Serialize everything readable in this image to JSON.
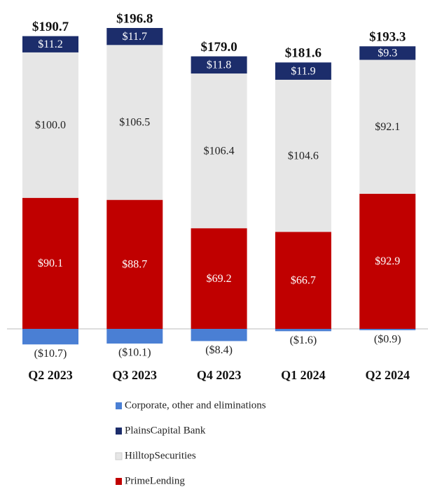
{
  "chart_data": {
    "type": "stacked_bar",
    "categories": [
      "Q2 2023",
      "Q3 2023",
      "Q4 2023",
      "Q1 2024",
      "Q2 2024"
    ],
    "series": [
      {
        "name": "Corporate, other and eliminations",
        "color": "#4a7fd4",
        "values": [
          -10.7,
          -10.1,
          -8.4,
          -1.6,
          -0.9
        ],
        "value_labels": [
          "($10.7)",
          "($10.1)",
          "($8.4)",
          "($1.6)",
          "($0.9)"
        ]
      },
      {
        "name": "PlainsCapital Bank",
        "color": "#1c2d6b",
        "values": [
          11.2,
          11.7,
          11.8,
          11.9,
          9.3
        ],
        "value_labels": [
          "$11.2",
          "$11.7",
          "$11.8",
          "$11.9",
          "$9.3"
        ]
      },
      {
        "name": "HilltopSecurities",
        "color": "#e6e6e6",
        "values": [
          100.0,
          106.5,
          106.4,
          104.6,
          92.1
        ],
        "value_labels": [
          "$100.0",
          "$106.5",
          "$106.4",
          "$104.6",
          "$92.1"
        ]
      },
      {
        "name": "PrimeLending",
        "color": "#c00000",
        "values": [
          90.1,
          88.7,
          69.2,
          66.7,
          92.9
        ],
        "value_labels": [
          "$90.1",
          "$88.7",
          "$69.2",
          "$66.7",
          "$92.9"
        ]
      }
    ],
    "totals": {
      "values": [
        190.7,
        196.8,
        179.0,
        181.6,
        193.3
      ],
      "value_labels": [
        "$190.7",
        "$196.8",
        "$179.0",
        "$181.6",
        "$193.3"
      ]
    }
  }
}
